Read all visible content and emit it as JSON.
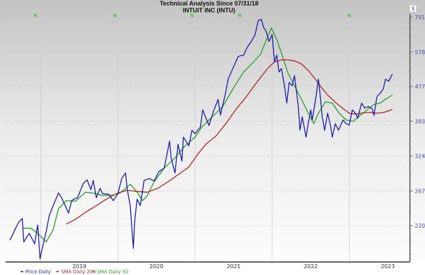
{
  "chart_data": {
    "type": "line",
    "title": "Technical Analysis Since 07/31/18",
    "subtitle": "INTUIT INC (INTU)",
    "y_axis_unit_label": "$",
    "y_scale": "log",
    "ylim": [
      178,
      720
    ],
    "xlim": [
      2018.55,
      2023.8
    ],
    "y_ticks": [
      220,
      267,
      324,
      393,
      477,
      578,
      701
    ],
    "x_ticks": [
      {
        "label": "2019",
        "t": 2019.5
      },
      {
        "label": "2020",
        "t": 2020.5
      },
      {
        "label": "2021",
        "t": 2021.5
      },
      {
        "label": "2022",
        "t": 2022.5
      },
      {
        "label": "2023",
        "t": 2023.5
      }
    ],
    "gridlines_t": [
      2019,
      2020,
      2021,
      2022,
      2023
    ],
    "grid": true,
    "legend_position": "bottom-left",
    "n_markers": [
      {
        "label": "N",
        "t": 2018.93
      },
      {
        "label": "N",
        "t": 2019.96
      },
      {
        "label": "N",
        "t": 2020.96
      },
      {
        "label": "N",
        "t": 2021.58
      },
      {
        "label": "N",
        "t": 2023.0
      }
    ],
    "series": [
      {
        "name": "Price Daily",
        "color": "#1a1aa6",
        "points": [
          [
            2018.6,
            203
          ],
          [
            2018.71,
            224
          ],
          [
            2018.76,
            229
          ],
          [
            2018.78,
            201
          ],
          [
            2018.85,
            211
          ],
          [
            2018.92,
            199
          ],
          [
            2018.96,
            221
          ],
          [
            2018.99,
            183
          ],
          [
            2019.02,
            194
          ],
          [
            2019.07,
            213
          ],
          [
            2019.11,
            233
          ],
          [
            2019.16,
            246
          ],
          [
            2019.23,
            264
          ],
          [
            2019.27,
            257
          ],
          [
            2019.33,
            243
          ],
          [
            2019.36,
            236
          ],
          [
            2019.4,
            253
          ],
          [
            2019.48,
            258
          ],
          [
            2019.55,
            278
          ],
          [
            2019.6,
            284
          ],
          [
            2019.65,
            269
          ],
          [
            2019.68,
            283
          ],
          [
            2019.72,
            257
          ],
          [
            2019.77,
            271
          ],
          [
            2019.8,
            263
          ],
          [
            2019.88,
            262
          ],
          [
            2019.94,
            253
          ],
          [
            2020.0,
            263
          ],
          [
            2020.05,
            286
          ],
          [
            2020.1,
            295
          ],
          [
            2020.12,
            270
          ],
          [
            2020.16,
            246
          ],
          [
            2020.2,
            194
          ],
          [
            2020.22,
            229
          ],
          [
            2020.25,
            255
          ],
          [
            2020.29,
            246
          ],
          [
            2020.34,
            283
          ],
          [
            2020.41,
            286
          ],
          [
            2020.47,
            282
          ],
          [
            2020.53,
            297
          ],
          [
            2020.6,
            303
          ],
          [
            2020.67,
            352
          ],
          [
            2020.69,
            321
          ],
          [
            2020.74,
            295
          ],
          [
            2020.78,
            346
          ],
          [
            2020.83,
            315
          ],
          [
            2020.85,
            360
          ],
          [
            2020.92,
            343
          ],
          [
            2020.96,
            374
          ],
          [
            2021.0,
            367
          ],
          [
            2021.07,
            381
          ],
          [
            2021.1,
            419
          ],
          [
            2021.18,
            384
          ],
          [
            2021.24,
            416
          ],
          [
            2021.3,
            444
          ],
          [
            2021.33,
            407
          ],
          [
            2021.39,
            455
          ],
          [
            2021.43,
            497
          ],
          [
            2021.49,
            527
          ],
          [
            2021.56,
            564
          ],
          [
            2021.63,
            568
          ],
          [
            2021.67,
            590
          ],
          [
            2021.73,
            613
          ],
          [
            2021.78,
            637
          ],
          [
            2021.82,
            688
          ],
          [
            2021.86,
            693
          ],
          [
            2021.89,
            662
          ],
          [
            2021.92,
            650
          ],
          [
            2021.96,
            613
          ],
          [
            2022.0,
            637
          ],
          [
            2022.03,
            547
          ],
          [
            2022.06,
            568
          ],
          [
            2022.09,
            517
          ],
          [
            2022.12,
            527
          ],
          [
            2022.16,
            479
          ],
          [
            2022.19,
            435
          ],
          [
            2022.22,
            488
          ],
          [
            2022.26,
            479
          ],
          [
            2022.29,
            507
          ],
          [
            2022.34,
            427
          ],
          [
            2022.36,
            374
          ],
          [
            2022.39,
            403
          ],
          [
            2022.44,
            360
          ],
          [
            2022.46,
            381
          ],
          [
            2022.5,
            419
          ],
          [
            2022.52,
            396
          ],
          [
            2022.57,
            452
          ],
          [
            2022.6,
            497
          ],
          [
            2022.62,
            461
          ],
          [
            2022.65,
            403
          ],
          [
            2022.68,
            374
          ],
          [
            2022.72,
            411
          ],
          [
            2022.76,
            381
          ],
          [
            2022.78,
            360
          ],
          [
            2022.82,
            388
          ],
          [
            2022.86,
            374
          ],
          [
            2022.92,
            396
          ],
          [
            2022.96,
            388
          ],
          [
            2023.0,
            385
          ],
          [
            2023.04,
            419
          ],
          [
            2023.08,
            411
          ],
          [
            2023.11,
            400
          ],
          [
            2023.16,
            435
          ],
          [
            2023.2,
            423
          ],
          [
            2023.25,
            427
          ],
          [
            2023.3,
            421
          ],
          [
            2023.32,
            406
          ],
          [
            2023.36,
            452
          ],
          [
            2023.4,
            459
          ],
          [
            2023.44,
            470
          ],
          [
            2023.47,
            497
          ],
          [
            2023.51,
            491
          ],
          [
            2023.54,
            503
          ],
          [
            2023.56,
            511
          ]
        ]
      },
      {
        "name": "SMA Daily 200",
        "color": "#b22222",
        "points": [
          [
            2019.33,
            222
          ],
          [
            2019.45,
            228
          ],
          [
            2019.58,
            237
          ],
          [
            2019.72,
            246
          ],
          [
            2019.85,
            255
          ],
          [
            2019.98,
            263
          ],
          [
            2020.12,
            268
          ],
          [
            2020.25,
            266
          ],
          [
            2020.38,
            265
          ],
          [
            2020.52,
            271
          ],
          [
            2020.65,
            281
          ],
          [
            2020.78,
            292
          ],
          [
            2020.92,
            305
          ],
          [
            2021.05,
            330
          ],
          [
            2021.14,
            346
          ],
          [
            2021.27,
            362
          ],
          [
            2021.4,
            388
          ],
          [
            2021.54,
            422
          ],
          [
            2021.67,
            452
          ],
          [
            2021.8,
            488
          ],
          [
            2021.94,
            527
          ],
          [
            2022.03,
            547
          ],
          [
            2022.12,
            553
          ],
          [
            2022.2,
            553
          ],
          [
            2022.29,
            550
          ],
          [
            2022.38,
            541
          ],
          [
            2022.47,
            521
          ],
          [
            2022.56,
            497
          ],
          [
            2022.65,
            472
          ],
          [
            2022.72,
            455
          ],
          [
            2022.83,
            435
          ],
          [
            2022.92,
            422
          ],
          [
            2023.0,
            411
          ],
          [
            2023.09,
            409
          ],
          [
            2023.18,
            412
          ],
          [
            2023.27,
            413
          ],
          [
            2023.36,
            411
          ],
          [
            2023.45,
            413
          ],
          [
            2023.56,
            420
          ]
        ]
      },
      {
        "name": "SMA Daily 50",
        "color": "#22a022",
        "points": [
          [
            2018.76,
            217
          ],
          [
            2018.87,
            217
          ],
          [
            2018.96,
            211
          ],
          [
            2019.07,
            201
          ],
          [
            2019.16,
            215
          ],
          [
            2019.23,
            242
          ],
          [
            2019.33,
            253
          ],
          [
            2019.45,
            252
          ],
          [
            2019.58,
            265
          ],
          [
            2019.72,
            263
          ],
          [
            2019.8,
            260
          ],
          [
            2019.94,
            261
          ],
          [
            2020.03,
            264
          ],
          [
            2020.16,
            277
          ],
          [
            2020.25,
            265
          ],
          [
            2020.32,
            253
          ],
          [
            2020.38,
            260
          ],
          [
            2020.47,
            281
          ],
          [
            2020.6,
            303
          ],
          [
            2020.74,
            321
          ],
          [
            2020.87,
            343
          ],
          [
            2021.0,
            360
          ],
          [
            2021.09,
            381
          ],
          [
            2021.18,
            396
          ],
          [
            2021.27,
            411
          ],
          [
            2021.36,
            427
          ],
          [
            2021.49,
            470
          ],
          [
            2021.63,
            517
          ],
          [
            2021.76,
            547
          ],
          [
            2021.85,
            571
          ],
          [
            2021.99,
            661
          ],
          [
            2022.07,
            613
          ],
          [
            2022.13,
            568
          ],
          [
            2022.2,
            517
          ],
          [
            2022.29,
            479
          ],
          [
            2022.38,
            444
          ],
          [
            2022.47,
            411
          ],
          [
            2022.54,
            388
          ],
          [
            2022.6,
            411
          ],
          [
            2022.69,
            438
          ],
          [
            2022.78,
            435
          ],
          [
            2022.87,
            411
          ],
          [
            2022.96,
            396
          ],
          [
            2023.05,
            393
          ],
          [
            2023.14,
            406
          ],
          [
            2023.23,
            419
          ],
          [
            2023.32,
            432
          ],
          [
            2023.4,
            435
          ],
          [
            2023.49,
            447
          ],
          [
            2023.56,
            455
          ]
        ]
      }
    ]
  }
}
